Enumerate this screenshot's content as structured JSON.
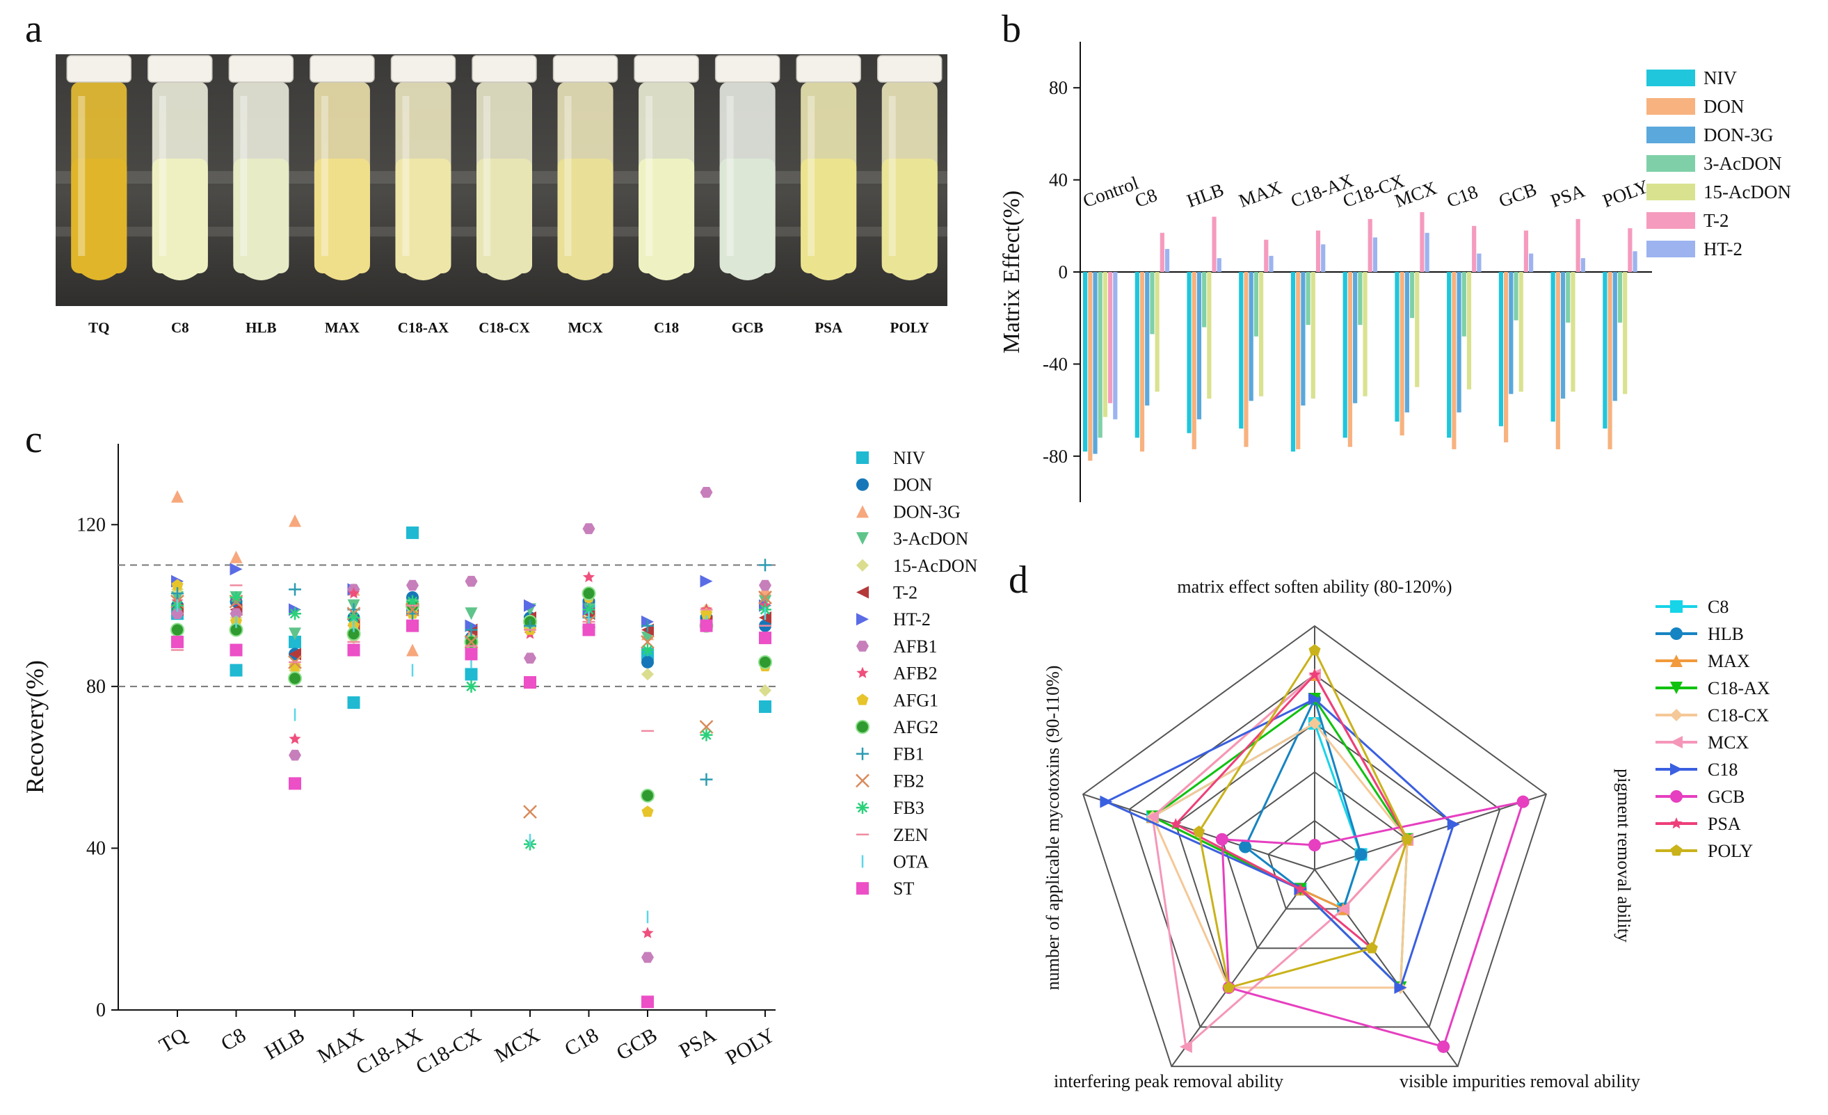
{
  "panels": {
    "a": "a",
    "b": "b",
    "c": "c",
    "d": "d"
  },
  "photo": {
    "tubes": [
      "TQ",
      "C8",
      "HLB",
      "MAX",
      "C18-AX",
      "C18-CX",
      "MCX",
      "C18",
      "GCB",
      "PSA",
      "POLY"
    ]
  },
  "chart_data": [
    {
      "panel": "b",
      "type": "bar",
      "ylabel": "Matrix Effect(%)",
      "ylim": [
        -100,
        100
      ],
      "yticks": [
        80,
        40,
        0,
        -40,
        -80
      ],
      "categories": [
        "Control",
        "C8",
        "HLB",
        "MAX",
        "C18-AX",
        "C18-CX",
        "MCX",
        "C18",
        "GCB",
        "PSA",
        "POLY"
      ],
      "legend_position": "right",
      "series": [
        {
          "name": "NIV",
          "color": "#1fc6dc",
          "values": [
            -78,
            -72,
            -70,
            -68,
            -78,
            -72,
            -65,
            -72,
            -67,
            -65,
            -68
          ]
        },
        {
          "name": "DON",
          "color": "#f7b27f",
          "values": [
            -82,
            -78,
            -77,
            -76,
            -77,
            -76,
            -71,
            -77,
            -74,
            -77,
            -77
          ]
        },
        {
          "name": "DON-3G",
          "color": "#5aa8dc",
          "values": [
            -79,
            -58,
            -64,
            -56,
            -58,
            -57,
            -61,
            -61,
            -53,
            -55,
            -56
          ]
        },
        {
          "name": "3-AcDON",
          "color": "#7fd0a8",
          "values": [
            -72,
            -27,
            -24,
            -28,
            -23,
            -23,
            -20,
            -28,
            -21,
            -22,
            -22
          ]
        },
        {
          "name": "15-AcDON",
          "color": "#d9e28f",
          "values": [
            -63,
            -52,
            -55,
            -54,
            -55,
            -54,
            -50,
            -51,
            -52,
            -52,
            -53
          ]
        },
        {
          "name": "T-2",
          "color": "#f59bbd",
          "values": [
            -57,
            17,
            24,
            14,
            18,
            23,
            26,
            20,
            18,
            23,
            19
          ]
        },
        {
          "name": "HT-2",
          "color": "#9cb3f0",
          "values": [
            -64,
            10,
            6,
            7,
            12,
            15,
            17,
            8,
            8,
            6,
            9
          ]
        }
      ]
    },
    {
      "panel": "c",
      "type": "scatter",
      "ylabel": "Recovery(%)",
      "ylim": [
        0,
        140
      ],
      "yticks": [
        0,
        40,
        80,
        120
      ],
      "reference_lines": [
        80,
        110
      ],
      "categories": [
        "TQ",
        "C8",
        "HLB",
        "MAX",
        "C18-AX",
        "C18-CX",
        "MCX",
        "C18",
        "GCB",
        "PSA",
        "POLY"
      ],
      "legend_position": "right",
      "series": [
        {
          "name": "NIV",
          "color": "#1fb9d2",
          "marker": "square",
          "values": [
            98,
            84,
            91,
            76,
            118,
            83,
            96,
            100,
            88,
            96,
            75
          ]
        },
        {
          "name": "DON",
          "color": "#1677b8",
          "marker": "circle",
          "values": [
            100,
            101,
            88,
            97,
            102,
            92,
            97,
            101,
            86,
            97,
            95
          ]
        },
        {
          "name": "DON-3G",
          "color": "#f7a77c",
          "marker": "triangle-up",
          "values": [
            127,
            112,
            121,
            104,
            89,
            93,
            96,
            100,
            93,
            97,
            104
          ]
        },
        {
          "name": "3-AcDON",
          "color": "#5fc48a",
          "marker": "triangle-down",
          "values": [
            102,
            102,
            93,
            100,
            100,
            98,
            99,
            99,
            92,
            97,
            101
          ]
        },
        {
          "name": "15-AcDON",
          "color": "#dadd8d",
          "marker": "diamond",
          "values": [
            104,
            97,
            84,
            92,
            99,
            90,
            95,
            98,
            83,
            99,
            79
          ]
        },
        {
          "name": "T-2",
          "color": "#b43a3a",
          "marker": "triangle-left",
          "values": [
            99,
            99,
            88,
            95,
            99,
            94,
            97,
            98,
            94,
            96,
            97
          ]
        },
        {
          "name": "HT-2",
          "color": "#5a6be6",
          "marker": "triangle-right",
          "values": [
            106,
            109,
            99,
            104,
            99,
            95,
            100,
            99,
            96,
            106,
            100
          ]
        },
        {
          "name": "AFB1",
          "color": "#c77fbb",
          "marker": "hexagon",
          "values": [
            98,
            98,
            63,
            104,
            105,
            106,
            87,
            119,
            13,
            128,
            105
          ]
        },
        {
          "name": "AFB2",
          "color": "#ef4f7c",
          "marker": "star",
          "values": [
            101,
            101,
            67,
            103,
            98,
            90,
            93,
            107,
            19,
            99,
            100
          ]
        },
        {
          "name": "AFG1",
          "color": "#e6c42a",
          "marker": "pentagon",
          "values": [
            105,
            96,
            85,
            95,
            98,
            91,
            94,
            102,
            49,
            98,
            85
          ]
        },
        {
          "name": "AFG2",
          "color": "#2f9a2f",
          "marker": "ball",
          "values": [
            94,
            94,
            82,
            93,
            100,
            91,
            96,
            103,
            53,
            95,
            86
          ]
        },
        {
          "name": "FB1",
          "color": "#2c9bb0",
          "marker": "plus",
          "values": [
            103,
            102,
            104,
            99,
            98,
            94,
            95,
            97,
            95,
            57,
            110
          ]
        },
        {
          "name": "FB2",
          "color": "#d88a5a",
          "marker": "x",
          "values": [
            101,
            101,
            86,
            98,
            99,
            91,
            49,
            96,
            91,
            70,
            102
          ]
        },
        {
          "name": "FB3",
          "color": "#2bd07a",
          "marker": "asterisk",
          "values": [
            100,
            102,
            98,
            97,
            101,
            80,
            41,
            99,
            89,
            68,
            99
          ]
        },
        {
          "name": "ZEN",
          "color": "#f08aa0",
          "marker": "hline",
          "values": [
            89,
            105,
            86,
            91,
            100,
            90,
            94,
            96,
            69,
            99,
            95
          ]
        },
        {
          "name": "OTA",
          "color": "#5bd6e6",
          "marker": "vline",
          "values": [
            100,
            96,
            73,
            95,
            84,
            86,
            42,
            97,
            23,
            96,
            98
          ]
        },
        {
          "name": "ST",
          "color": "#ec4fc6",
          "marker": "square",
          "values": [
            91,
            89,
            56,
            89,
            95,
            88,
            81,
            94,
            2,
            95,
            92
          ]
        }
      ]
    },
    {
      "panel": "d",
      "type": "radar",
      "axes": [
        "matrix effect soften ability (80-120%)",
        "pigment removal ability",
        "visible impurities removal ability",
        "interfering peak removal ability",
        "number of applicable mycotoxins (90-110%)"
      ],
      "rmax": 5,
      "legend_position": "right",
      "series": [
        {
          "name": "C8",
          "color": "#17d4e8",
          "marker": "square",
          "values": [
            3,
            1,
            1,
            0.5,
            3.5
          ]
        },
        {
          "name": "HLB",
          "color": "#1684c2",
          "marker": "circle",
          "values": [
            3.5,
            1,
            1,
            0.5,
            1.5
          ]
        },
        {
          "name": "MAX",
          "color": "#f29a3c",
          "marker": "triangle-up",
          "values": [
            4,
            2,
            1,
            0.5,
            3.5
          ]
        },
        {
          "name": "C18-AX",
          "color": "#10c210",
          "marker": "triangle-down",
          "values": [
            3.5,
            2,
            3,
            0.5,
            3.5
          ]
        },
        {
          "name": "C18-CX",
          "color": "#f5c897",
          "marker": "diamond",
          "values": [
            3,
            2,
            3,
            3,
            3.5
          ]
        },
        {
          "name": "MCX",
          "color": "#f596b9",
          "marker": "triangle-left",
          "values": [
            4,
            2,
            1,
            4.5,
            3.5
          ]
        },
        {
          "name": "C18",
          "color": "#3a5fe0",
          "marker": "triangle-right",
          "values": [
            3.5,
            3,
            3,
            0.5,
            4.5
          ]
        },
        {
          "name": "GCB",
          "color": "#e63fc0",
          "marker": "circle",
          "values": [
            0.5,
            4.5,
            4.5,
            3,
            2
          ]
        },
        {
          "name": "PSA",
          "color": "#ee3f7a",
          "marker": "star",
          "values": [
            4,
            2,
            2,
            0.5,
            3
          ]
        },
        {
          "name": "POLY",
          "color": "#c9b21a",
          "marker": "pentagon",
          "values": [
            4.5,
            2,
            2,
            3,
            2.5
          ]
        }
      ]
    }
  ]
}
